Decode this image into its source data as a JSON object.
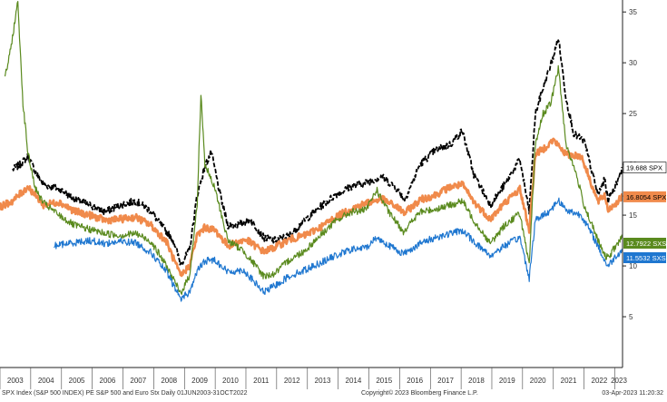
{
  "chart_data": {
    "type": "line",
    "ylim": [
      0,
      36
    ],
    "yticks": [
      5,
      10,
      15,
      20,
      25,
      30,
      35
    ],
    "xlim": [
      "2003-01-01",
      "2023-04-03"
    ],
    "years": [
      "2003",
      "2004",
      "2005",
      "2006",
      "2007",
      "2008",
      "2009",
      "2010",
      "2011",
      "2012",
      "2013",
      "2014",
      "2015",
      "2016",
      "2017",
      "2018",
      "2019",
      "2020",
      "2021",
      "2022",
      "2023"
    ],
    "grid": false,
    "series": [
      {
        "name": "SPX",
        "end_label": "19.688",
        "color": "#000000",
        "label_bg": "#ffffff",
        "label_fg": "#000000",
        "dashed": true,
        "points": [
          [
            "2003-06-02",
            19.5
          ],
          [
            "2003-09-01",
            20.0
          ],
          [
            "2003-12-01",
            20.8
          ],
          [
            "2004-03-01",
            19.2
          ],
          [
            "2004-06-01",
            18.0
          ],
          [
            "2004-12-01",
            17.6
          ],
          [
            "2005-06-01",
            16.6
          ],
          [
            "2005-12-01",
            16.0
          ],
          [
            "2006-06-01",
            15.3
          ],
          [
            "2006-12-01",
            16.0
          ],
          [
            "2007-06-01",
            16.4
          ],
          [
            "2007-12-01",
            15.4
          ],
          [
            "2008-03-01",
            14.3
          ],
          [
            "2008-06-01",
            13.4
          ],
          [
            "2008-09-01",
            12.3
          ],
          [
            "2008-11-15",
            10.2
          ],
          [
            "2009-03-01",
            11.5
          ],
          [
            "2009-06-01",
            17.0
          ],
          [
            "2009-09-01",
            19.8
          ],
          [
            "2009-11-15",
            21.2
          ],
          [
            "2010-03-01",
            17.0
          ],
          [
            "2010-06-01",
            14.0
          ],
          [
            "2010-09-01",
            14.0
          ],
          [
            "2011-03-01",
            14.5
          ],
          [
            "2011-08-01",
            12.8
          ],
          [
            "2011-12-01",
            12.5
          ],
          [
            "2012-06-01",
            13.0
          ],
          [
            "2012-12-01",
            14.5
          ],
          [
            "2013-06-01",
            15.8
          ],
          [
            "2013-12-01",
            17.0
          ],
          [
            "2014-06-01",
            17.8
          ],
          [
            "2014-12-01",
            18.2
          ],
          [
            "2015-06-01",
            18.8
          ],
          [
            "2015-12-01",
            17.6
          ],
          [
            "2016-03-01",
            16.5
          ],
          [
            "2016-09-01",
            20.0
          ],
          [
            "2017-03-01",
            21.4
          ],
          [
            "2017-09-01",
            22.0
          ],
          [
            "2018-01-15",
            23.3
          ],
          [
            "2018-06-01",
            19.0
          ],
          [
            "2018-12-15",
            16.0
          ],
          [
            "2019-06-01",
            18.0
          ],
          [
            "2019-12-01",
            20.5
          ],
          [
            "2020-03-20",
            15.3
          ],
          [
            "2020-06-01",
            25.0
          ],
          [
            "2020-09-01",
            27.5
          ],
          [
            "2021-01-15",
            31.0
          ],
          [
            "2021-03-01",
            32.5
          ],
          [
            "2021-06-01",
            26.5
          ],
          [
            "2021-09-01",
            23.0
          ],
          [
            "2022-01-01",
            22.3
          ],
          [
            "2022-06-15",
            17.0
          ],
          [
            "2022-09-01",
            18.5
          ],
          [
            "2022-10-15",
            16.5
          ],
          [
            "2023-01-15",
            18.0
          ],
          [
            "2023-03-31",
            19.688
          ]
        ]
      },
      {
        "name": "SPX",
        "end_label": "16.8054",
        "color": "#f08a4b",
        "label_bg": "#f08a4b",
        "label_fg": "#000000",
        "dashed": false,
        "points": [
          [
            "2003-01-01",
            15.8
          ],
          [
            "2003-06-01",
            16.4
          ],
          [
            "2003-12-01",
            17.8
          ],
          [
            "2004-06-01",
            16.0
          ],
          [
            "2004-12-01",
            16.3
          ],
          [
            "2005-06-01",
            15.4
          ],
          [
            "2005-12-01",
            15.0
          ],
          [
            "2006-06-01",
            14.5
          ],
          [
            "2006-12-01",
            14.6
          ],
          [
            "2007-06-01",
            14.8
          ],
          [
            "2007-12-01",
            14.0
          ],
          [
            "2008-06-01",
            12.4
          ],
          [
            "2008-11-15",
            9.0
          ],
          [
            "2009-03-01",
            10.0
          ],
          [
            "2009-06-01",
            13.0
          ],
          [
            "2009-09-01",
            13.8
          ],
          [
            "2010-01-01",
            13.5
          ],
          [
            "2010-06-01",
            12.0
          ],
          [
            "2011-01-01",
            12.6
          ],
          [
            "2011-08-01",
            11.4
          ],
          [
            "2011-12-01",
            11.8
          ],
          [
            "2012-06-01",
            12.6
          ],
          [
            "2012-12-01",
            13.0
          ],
          [
            "2013-06-01",
            13.8
          ],
          [
            "2013-12-01",
            14.8
          ],
          [
            "2014-06-01",
            15.6
          ],
          [
            "2014-12-01",
            16.2
          ],
          [
            "2015-06-01",
            16.6
          ],
          [
            "2015-12-01",
            15.8
          ],
          [
            "2016-03-01",
            15.2
          ],
          [
            "2016-09-01",
            16.5
          ],
          [
            "2017-03-01",
            17.0
          ],
          [
            "2017-09-01",
            17.8
          ],
          [
            "2018-01-15",
            18.0
          ],
          [
            "2018-06-01",
            16.3
          ],
          [
            "2018-12-15",
            14.6
          ],
          [
            "2019-06-01",
            16.2
          ],
          [
            "2019-12-01",
            17.6
          ],
          [
            "2020-03-20",
            13.5
          ],
          [
            "2020-06-01",
            21.0
          ],
          [
            "2020-09-01",
            21.5
          ],
          [
            "2021-01-01",
            22.4
          ],
          [
            "2021-06-01",
            21.0
          ],
          [
            "2021-12-01",
            20.8
          ],
          [
            "2022-06-15",
            16.3
          ],
          [
            "2022-09-01",
            17.0
          ],
          [
            "2022-10-15",
            15.5
          ],
          [
            "2023-01-15",
            16.2
          ],
          [
            "2023-03-31",
            16.8054
          ]
        ]
      },
      {
        "name": "SXSE",
        "end_label": "12.7922",
        "color": "#5a8a1e",
        "label_bg": "#5a8a1e",
        "label_fg": "#ffffff",
        "dashed": false,
        "points": [
          [
            "2003-03-01",
            28.5
          ],
          [
            "2003-05-01",
            31.0
          ],
          [
            "2003-08-01",
            36.0
          ],
          [
            "2003-10-01",
            26.0
          ],
          [
            "2003-12-01",
            21.0
          ],
          [
            "2004-03-01",
            17.5
          ],
          [
            "2004-06-01",
            16.2
          ],
          [
            "2004-12-01",
            15.0
          ],
          [
            "2005-06-01",
            14.0
          ],
          [
            "2005-12-01",
            13.6
          ],
          [
            "2006-06-01",
            13.2
          ],
          [
            "2006-12-01",
            13.0
          ],
          [
            "2007-06-01",
            13.2
          ],
          [
            "2007-12-01",
            12.4
          ],
          [
            "2008-06-01",
            10.0
          ],
          [
            "2008-11-15",
            7.3
          ],
          [
            "2009-03-01",
            9.0
          ],
          [
            "2009-06-01",
            16.0
          ],
          [
            "2009-07-15",
            27.0
          ],
          [
            "2009-09-01",
            20.0
          ],
          [
            "2010-01-01",
            17.5
          ],
          [
            "2010-06-01",
            12.5
          ],
          [
            "2010-12-01",
            11.5
          ],
          [
            "2011-08-01",
            9.0
          ],
          [
            "2011-12-01",
            9.2
          ],
          [
            "2012-06-01",
            10.6
          ],
          [
            "2012-12-01",
            11.5
          ],
          [
            "2013-06-01",
            13.0
          ],
          [
            "2013-12-01",
            14.4
          ],
          [
            "2014-06-01",
            15.3
          ],
          [
            "2014-12-01",
            15.5
          ],
          [
            "2015-04-01",
            17.5
          ],
          [
            "2015-09-01",
            15.2
          ],
          [
            "2016-02-15",
            13.4
          ],
          [
            "2016-09-01",
            15.3
          ],
          [
            "2017-03-01",
            15.6
          ],
          [
            "2017-09-01",
            16.0
          ],
          [
            "2018-01-15",
            16.4
          ],
          [
            "2018-06-01",
            14.5
          ],
          [
            "2018-12-15",
            12.2
          ],
          [
            "2019-06-01",
            14.0
          ],
          [
            "2019-12-01",
            15.2
          ],
          [
            "2020-03-20",
            10.0
          ],
          [
            "2020-06-01",
            22.0
          ],
          [
            "2020-09-01",
            25.0
          ],
          [
            "2020-12-01",
            26.0
          ],
          [
            "2021-03-01",
            29.5
          ],
          [
            "2021-06-01",
            22.0
          ],
          [
            "2021-10-01",
            19.0
          ],
          [
            "2022-01-01",
            16.0
          ],
          [
            "2022-06-15",
            12.5
          ],
          [
            "2022-09-01",
            11.0
          ],
          [
            "2022-10-15",
            10.8
          ],
          [
            "2023-01-15",
            12.0
          ],
          [
            "2023-03-31",
            12.7922
          ]
        ]
      },
      {
        "name": "SXSE",
        "end_label": "11.5532",
        "color": "#1f77d0",
        "label_bg": "#1f77d0",
        "label_fg": "#ffffff",
        "dashed": false,
        "points": [
          [
            "2004-10-01",
            12.0
          ],
          [
            "2005-06-01",
            12.3
          ],
          [
            "2005-12-01",
            12.5
          ],
          [
            "2006-06-01",
            12.2
          ],
          [
            "2006-12-01",
            12.4
          ],
          [
            "2007-06-01",
            12.3
          ],
          [
            "2007-12-01",
            11.3
          ],
          [
            "2008-06-01",
            9.4
          ],
          [
            "2008-11-15",
            6.8
          ],
          [
            "2009-03-01",
            7.4
          ],
          [
            "2009-06-01",
            9.5
          ],
          [
            "2009-09-01",
            10.5
          ],
          [
            "2010-01-01",
            10.6
          ],
          [
            "2010-06-01",
            9.4
          ],
          [
            "2010-12-01",
            9.6
          ],
          [
            "2011-08-01",
            7.4
          ],
          [
            "2011-12-01",
            8.0
          ],
          [
            "2012-06-01",
            9.0
          ],
          [
            "2012-12-01",
            9.6
          ],
          [
            "2013-06-01",
            10.3
          ],
          [
            "2013-12-01",
            11.0
          ],
          [
            "2014-06-01",
            11.6
          ],
          [
            "2014-12-01",
            11.8
          ],
          [
            "2015-04-01",
            12.8
          ],
          [
            "2015-09-01",
            12.0
          ],
          [
            "2016-02-15",
            11.2
          ],
          [
            "2016-09-01",
            12.2
          ],
          [
            "2017-03-01",
            12.8
          ],
          [
            "2017-09-01",
            13.2
          ],
          [
            "2018-01-15",
            13.5
          ],
          [
            "2018-06-01",
            12.4
          ],
          [
            "2018-12-15",
            11.0
          ],
          [
            "2019-06-01",
            12.0
          ],
          [
            "2019-12-01",
            12.8
          ],
          [
            "2020-03-20",
            8.8
          ],
          [
            "2020-06-01",
            14.5
          ],
          [
            "2020-12-01",
            15.5
          ],
          [
            "2021-03-01",
            16.5
          ],
          [
            "2021-06-01",
            15.5
          ],
          [
            "2021-12-01",
            15.0
          ],
          [
            "2022-06-15",
            12.0
          ],
          [
            "2022-09-01",
            10.5
          ],
          [
            "2022-10-15",
            10.0
          ],
          [
            "2023-01-15",
            11.0
          ],
          [
            "2023-03-31",
            11.5532
          ]
        ]
      }
    ]
  },
  "footer": {
    "left": "SPX Index (S&P 500 INDEX) PE S&P 500 and Euro Stx  Daily 01JUN2003-31OCT2022",
    "center": "Copyright© 2023 Bloomberg Finance L.P.",
    "right": "03-Apr-2023 11:20:32"
  }
}
